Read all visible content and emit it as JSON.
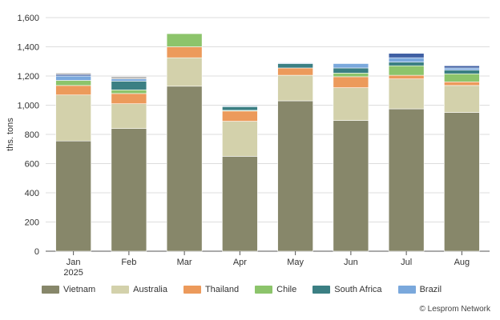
{
  "chart_data": {
    "type": "bar",
    "stacked": true,
    "ylabel": "ths. tons",
    "ylim": [
      0,
      1600
    ],
    "yticks": [
      0,
      200,
      400,
      600,
      800,
      1000,
      1200,
      1400,
      1600
    ],
    "ytick_labels": [
      "0",
      "200",
      "400",
      "600",
      "800",
      "1,000",
      "1,200",
      "1,400",
      "1,600"
    ],
    "categories": [
      "Jan\n2025",
      "Feb",
      "Mar",
      "Apr",
      "May",
      "Jun",
      "Jul",
      "Aug"
    ],
    "grid": true,
    "legend_position": "bottom",
    "series": [
      {
        "name": "Vietnam",
        "color": "#87876a",
        "values": [
          755,
          840,
          1130,
          650,
          1030,
          895,
          975,
          950
        ]
      },
      {
        "name": "Australia",
        "color": "#d3d1ab",
        "values": [
          315,
          170,
          195,
          240,
          175,
          225,
          205,
          185
        ]
      },
      {
        "name": "Thailand",
        "color": "#ec9a5b",
        "values": [
          65,
          70,
          75,
          70,
          50,
          75,
          25,
          25
        ]
      },
      {
        "name": "Chile",
        "color": "#8cc46b",
        "values": [
          35,
          25,
          90,
          5,
          0,
          25,
          65,
          55
        ]
      },
      {
        "name": "South Africa",
        "color": "#3b7f83",
        "values": [
          0,
          60,
          0,
          25,
          30,
          35,
          25,
          25
        ]
      },
      {
        "name": "Brazil",
        "color": "#7aa8dc",
        "values": [
          30,
          15,
          0,
          5,
          5,
          30,
          30,
          15
        ]
      },
      {
        "color": "#3f5fa3",
        "values": [
          10,
          0,
          0,
          0,
          0,
          0,
          30,
          15
        ]
      },
      {
        "color": "#b3b3b3",
        "values": [
          10,
          15,
          0,
          0,
          0,
          0,
          0,
          0
        ]
      }
    ],
    "credit": "© Lesprom Network"
  }
}
